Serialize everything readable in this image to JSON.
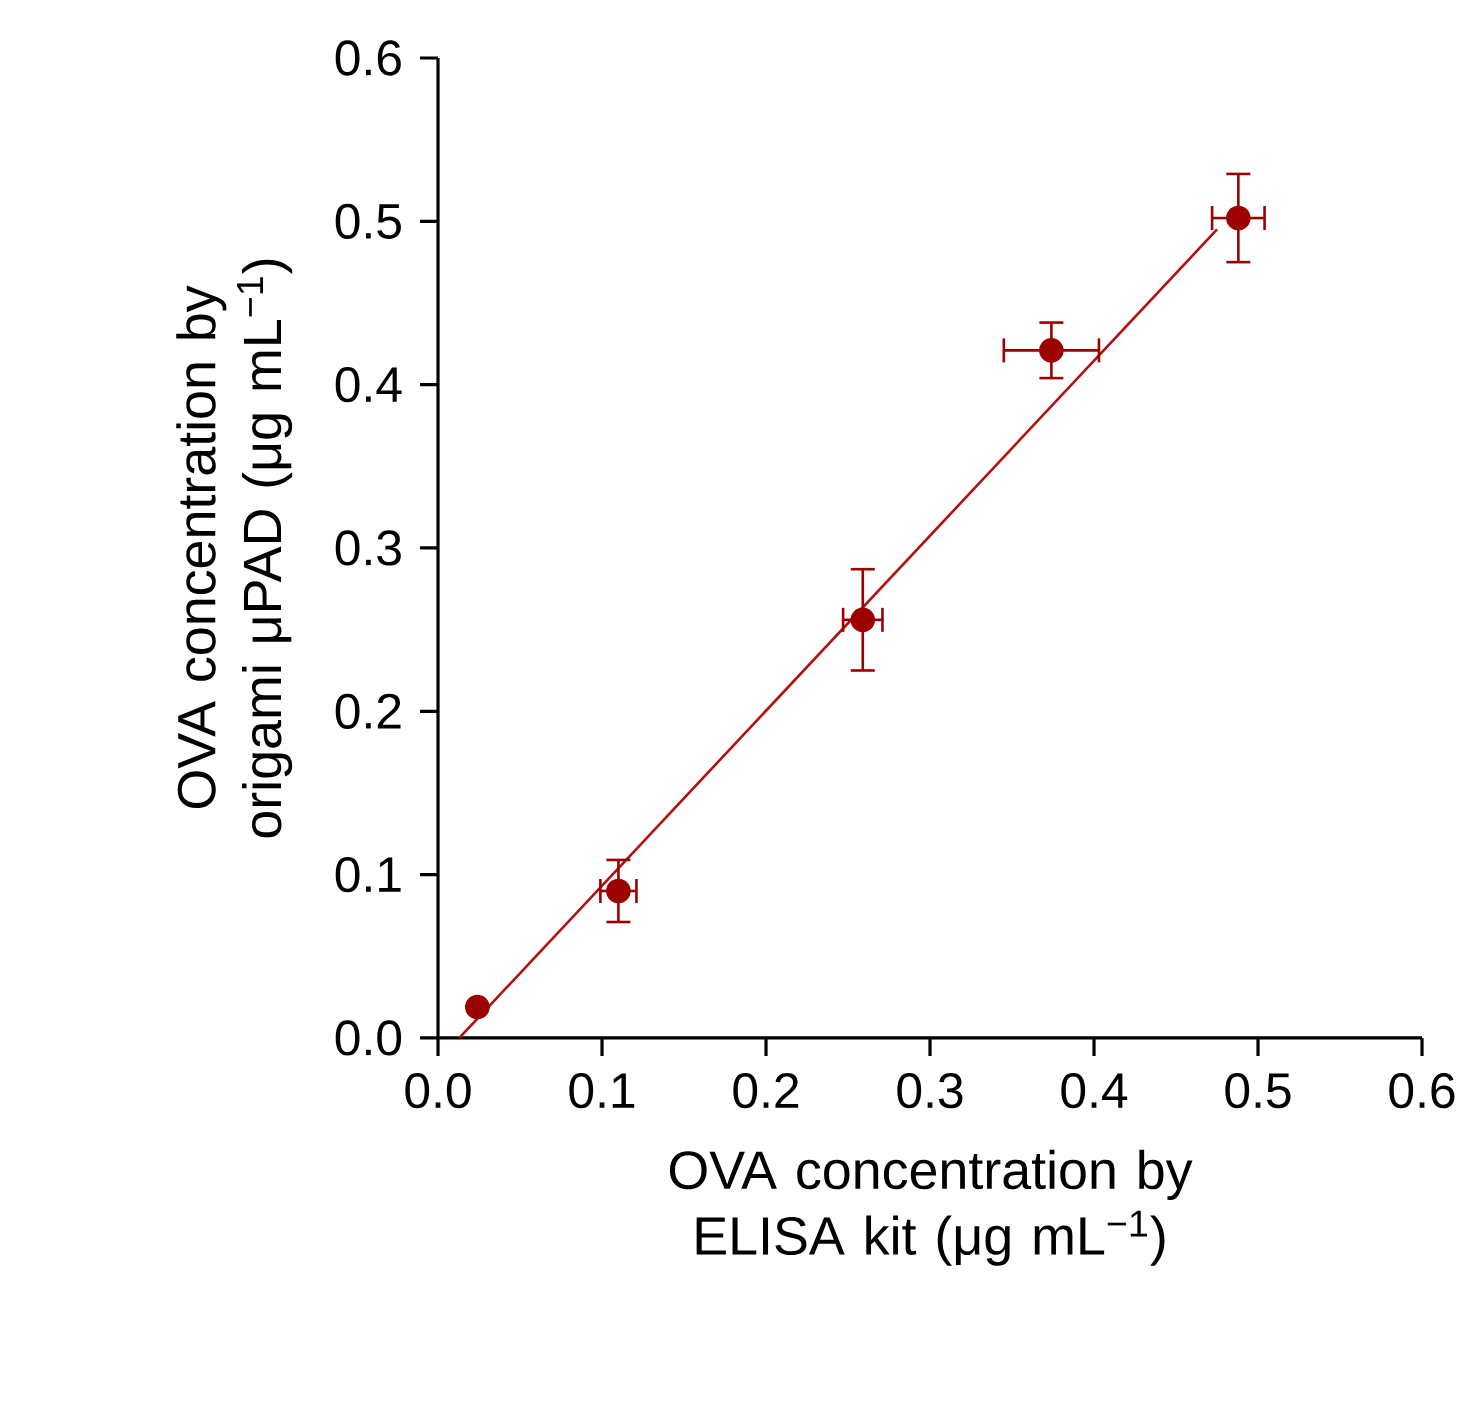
{
  "chart_data": {
    "type": "scatter",
    "xlabel": "OVA concentration by ELISA kit (μg mL$^{−1}$)",
    "ylabel": "OVA concentration by origami μPAD (μg mL$^{−1}$)",
    "xlim": [
      0,
      0.6
    ],
    "ylim": [
      0,
      0.6
    ],
    "xticks": [
      {
        "value": 0,
        "label": "0.0"
      },
      0.1,
      0.2,
      0.3,
      0.4,
      0.5,
      0.6
    ],
    "yticks": [
      {
        "value": 0,
        "label": "0.0"
      },
      0.1,
      0.2,
      0.3,
      0.4,
      0.5,
      0.6
    ],
    "series": [
      {
        "type": "line",
        "color": "#b01010",
        "marker": "none",
        "line_style": "solid",
        "x": [
          0.013,
          0.475
        ],
        "values": [
          0.0,
          0.495
        ]
      },
      {
        "color": "#9c0000",
        "marker": "circle",
        "x": [
          0.024,
          0.11,
          0.259,
          0.374,
          0.488
        ],
        "values": [
          0.019,
          0.09,
          0.256,
          0.421,
          0.502
        ],
        "errors": [
          null,
          0.019,
          0.031,
          0.017,
          0.027
        ],
        "xerrors": [
          null,
          0.011,
          0.012,
          0.029,
          0.016
        ]
      }
    ]
  }
}
